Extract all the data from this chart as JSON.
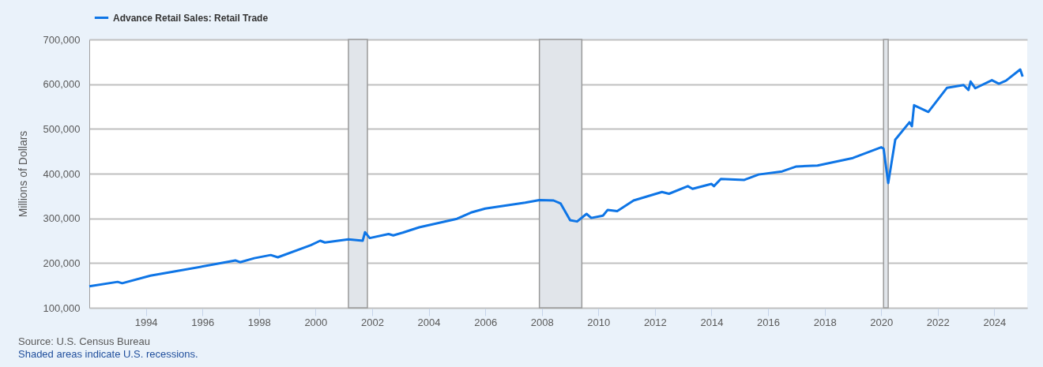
{
  "chart_data": {
    "type": "line",
    "ylabel": "Millions of Dollars",
    "xlim": [
      "1992-01",
      "2025-03"
    ],
    "xticks": [
      "1994",
      "1996",
      "1998",
      "2000",
      "2002",
      "2004",
      "2006",
      "2008",
      "2010",
      "2012",
      "2014",
      "2016",
      "2018",
      "2020",
      "2022",
      "2024"
    ],
    "ylim": [
      100000,
      700000
    ],
    "yticks": [
      {
        "value": 100000,
        "label": "100,000"
      },
      {
        "value": 200000,
        "label": "200,000"
      },
      {
        "value": 300000,
        "label": "300,000"
      },
      {
        "value": 400000,
        "label": "400,000"
      },
      {
        "value": 500000,
        "label": "500,000"
      },
      {
        "value": 600000,
        "label": "600,000"
      },
      {
        "value": 700000,
        "label": "700,000"
      }
    ],
    "grid": "y",
    "legend": "top left",
    "x": [
      "1992-01",
      "1993-01",
      "1993-03",
      "1994-03",
      "1995-01",
      "1996-09",
      "1997-03",
      "1997-05",
      "1997-11",
      "1998-06",
      "1998-09",
      "1999-11",
      "2000-03",
      "2000-05",
      "2001-03",
      "2001-09",
      "2001-10",
      "2001-12",
      "2002-08",
      "2002-10",
      "2003-02",
      "2003-09",
      "2005-01",
      "2005-07",
      "2006-01",
      "2007-06",
      "2007-12",
      "2008-06",
      "2008-09",
      "2009-01",
      "2009-04",
      "2009-08",
      "2009-10",
      "2010-03",
      "2010-05",
      "2010-09",
      "2011-04",
      "2012-04",
      "2012-07",
      "2013-03",
      "2013-05",
      "2014-01",
      "2014-02",
      "2014-05",
      "2015-03",
      "2015-09",
      "2016-07",
      "2017-01",
      "2017-10",
      "2019-01",
      "2020-01",
      "2020-02",
      "2020-04",
      "2020-07",
      "2021-01",
      "2021-02",
      "2021-03",
      "2021-09",
      "2022-05",
      "2022-12",
      "2023-02",
      "2023-03",
      "2023-05",
      "2023-12",
      "2024-03",
      "2024-06",
      "2024-12",
      "2025-01"
    ],
    "series": [
      {
        "name": "Advance Retail Sales: Retail Trade",
        "color": "#0e75e6",
        "values": [
          148000,
          158000,
          155000,
          172000,
          181000,
          200000,
          206000,
          202000,
          211000,
          218000,
          213000,
          240000,
          250000,
          246000,
          253000,
          250000,
          269000,
          256000,
          265000,
          262000,
          268000,
          280000,
          299000,
          313000,
          322000,
          335000,
          341000,
          340000,
          333000,
          296000,
          293000,
          310000,
          301000,
          306000,
          319000,
          316000,
          340000,
          359000,
          355000,
          372000,
          366000,
          377000,
          372000,
          388000,
          386000,
          398000,
          405000,
          416000,
          418000,
          435000,
          459000,
          456000,
          379000,
          476000,
          515000,
          506000,
          553000,
          538000,
          592000,
          598000,
          587000,
          606000,
          591000,
          609000,
          601000,
          608000,
          633000,
          617000
        ]
      }
    ],
    "bands": [
      {
        "axis": "x",
        "from": "2001-03",
        "to": "2001-11"
      },
      {
        "axis": "x",
        "from": "2007-12",
        "to": "2009-06"
      },
      {
        "axis": "x",
        "from": "2020-02",
        "to": "2020-04"
      }
    ],
    "annotations": [
      "Source: U.S. Census Bureau",
      "Shaded areas indicate U.S. recessions."
    ]
  }
}
